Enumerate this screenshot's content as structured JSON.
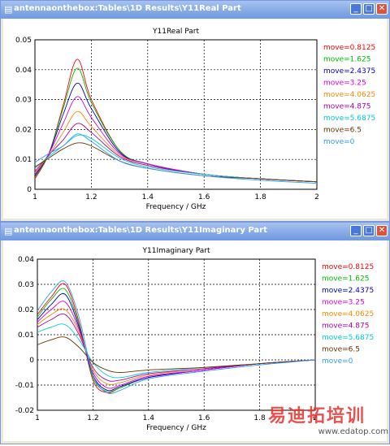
{
  "colors": {
    "titlebar": "#6f98e0",
    "series": [
      "#ff0000",
      "#00bb00",
      "#0000cc",
      "#dd00dd",
      "#ff8800",
      "#aa00aa",
      "#00cccc",
      "#663300",
      "#3399ff"
    ]
  },
  "windows": [
    {
      "title": "antennaonthebox:Tables\\1D Results\\Y11Real Part",
      "controls": {
        "minimize": "_",
        "maximize": "□",
        "close": "✕"
      },
      "icon": "window-icon"
    },
    {
      "title": "antennaonthebox:Tables\\1D Results\\Y11Imaginary Part",
      "controls": {
        "minimize": "_",
        "maximize": "□",
        "close": "✕"
      },
      "icon": "window-icon"
    }
  ],
  "chart_data": [
    {
      "type": "line",
      "title": "Y11Real Part",
      "xlabel": "Frequency / GHz",
      "ylabel": "",
      "xlim": [
        1,
        2
      ],
      "ylim": [
        0,
        0.05
      ],
      "xticks": [
        "1",
        "1.2",
        "1.4",
        "1.6",
        "1.8",
        "2"
      ],
      "yticks": [
        "0",
        "0.01",
        "0.02",
        "0.03",
        "0.04",
        "0.05"
      ],
      "grid": true,
      "legend_position": "right",
      "x": [
        1.0,
        1.05,
        1.1,
        1.15,
        1.2,
        1.3,
        1.4,
        1.6,
        1.8,
        2.0
      ],
      "series": [
        {
          "name": "move=0.8125",
          "values": [
            0.0035,
            0.012,
            0.028,
            0.0435,
            0.03,
            0.013,
            0.0085,
            0.005,
            0.0035,
            0.0025
          ]
        },
        {
          "name": "move=1.625",
          "values": [
            0.004,
            0.012,
            0.027,
            0.0405,
            0.029,
            0.013,
            0.0085,
            0.005,
            0.0035,
            0.0025
          ]
        },
        {
          "name": "move=2.4375",
          "values": [
            0.0045,
            0.012,
            0.025,
            0.0355,
            0.027,
            0.0125,
            0.0085,
            0.005,
            0.0035,
            0.0025
          ]
        },
        {
          "name": "move=3.25",
          "values": [
            0.005,
            0.012,
            0.022,
            0.031,
            0.024,
            0.012,
            0.0085,
            0.005,
            0.0035,
            0.0025
          ]
        },
        {
          "name": "move=4.0625",
          "values": [
            0.0055,
            0.0115,
            0.019,
            0.026,
            0.021,
            0.0115,
            0.008,
            0.005,
            0.0035,
            0.0025
          ]
        },
        {
          "name": "move=4.875",
          "values": [
            0.006,
            0.0115,
            0.0165,
            0.022,
            0.019,
            0.011,
            0.008,
            0.005,
            0.0035,
            0.0025
          ]
        },
        {
          "name": "move=5.6875",
          "values": [
            0.007,
            0.011,
            0.0145,
            0.018,
            0.017,
            0.0105,
            0.0075,
            0.005,
            0.0035,
            0.0025
          ]
        },
        {
          "name": "move=6.5",
          "values": [
            0.0075,
            0.0105,
            0.0135,
            0.0155,
            0.0145,
            0.0095,
            0.007,
            0.0045,
            0.0035,
            0.0025
          ]
        },
        {
          "name": "move=0",
          "values": [
            0.009,
            0.012,
            0.0145,
            0.0185,
            0.016,
            0.0095,
            0.007,
            0.0045,
            0.003,
            0.002
          ]
        }
      ]
    },
    {
      "type": "line",
      "title": "Y11Imaginary Part",
      "xlabel": "Frequency / GHz",
      "ylabel": "",
      "xlim": [
        1,
        2
      ],
      "ylim": [
        -0.02,
        0.04
      ],
      "xticks": [
        "1",
        "1.2",
        "1.4",
        "1.6",
        "1.8",
        "2"
      ],
      "yticks": [
        "-0.02",
        "-0.01",
        "0",
        "0.01",
        "0.02",
        "0.03",
        "0.04"
      ],
      "grid": true,
      "legend_position": "right",
      "x": [
        1.0,
        1.05,
        1.1,
        1.15,
        1.2,
        1.25,
        1.3,
        1.4,
        1.6,
        1.8,
        2.0
      ],
      "series": [
        {
          "name": "move=0.8125",
          "values": [
            0.018,
            0.025,
            0.03,
            0.015,
            -0.008,
            -0.013,
            -0.011,
            -0.007,
            -0.004,
            -0.0015,
            0.0
          ]
        },
        {
          "name": "move=1.625",
          "values": [
            0.017,
            0.024,
            0.028,
            0.014,
            -0.007,
            -0.0125,
            -0.011,
            -0.007,
            -0.004,
            -0.0015,
            0.0
          ]
        },
        {
          "name": "move=2.4375",
          "values": [
            0.016,
            0.022,
            0.026,
            0.013,
            -0.006,
            -0.012,
            -0.0105,
            -0.007,
            -0.004,
            -0.0015,
            0.0
          ]
        },
        {
          "name": "move=3.25",
          "values": [
            0.015,
            0.02,
            0.023,
            0.012,
            -0.005,
            -0.011,
            -0.01,
            -0.0065,
            -0.004,
            -0.0015,
            0.0
          ]
        },
        {
          "name": "move=4.0625",
          "values": [
            0.014,
            0.018,
            0.02,
            0.011,
            -0.004,
            -0.0095,
            -0.009,
            -0.006,
            -0.0035,
            -0.0015,
            0.0
          ]
        },
        {
          "name": "move=4.875",
          "values": [
            0.013,
            0.016,
            0.018,
            0.01,
            -0.003,
            -0.008,
            -0.008,
            -0.0055,
            -0.0035,
            -0.0015,
            0.0
          ]
        },
        {
          "name": "move=5.6875",
          "values": [
            0.011,
            0.013,
            0.014,
            0.008,
            -0.001,
            -0.006,
            -0.007,
            -0.005,
            -0.003,
            -0.0015,
            0.0
          ]
        },
        {
          "name": "move=6.5",
          "values": [
            0.006,
            0.008,
            0.009,
            0.005,
            -0.001,
            -0.004,
            -0.005,
            -0.004,
            -0.003,
            -0.0015,
            0.0
          ]
        },
        {
          "name": "move=0",
          "values": [
            0.0195,
            0.027,
            0.031,
            0.017,
            -0.006,
            -0.013,
            -0.012,
            -0.0075,
            -0.0045,
            -0.002,
            0.0
          ]
        }
      ]
    }
  ],
  "watermark": {
    "brand": "易迪拓培训",
    "url": "www.edatop.com"
  }
}
